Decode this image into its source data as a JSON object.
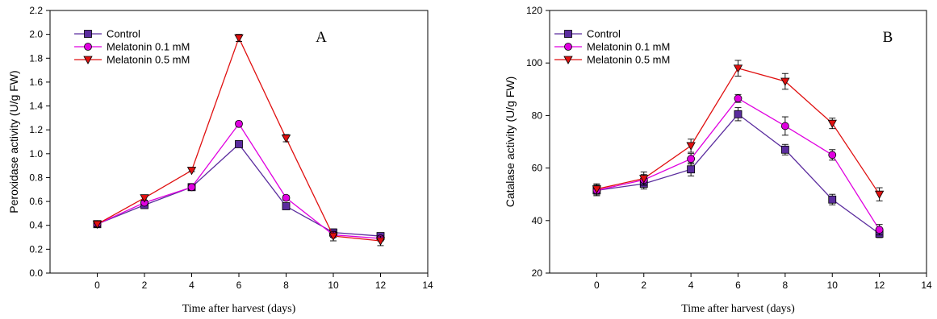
{
  "chart_data": [
    {
      "type": "line",
      "panel_label": "A",
      "xlabel": "Time after harvest (days)",
      "ylabel": "Peroxidase activity (U/g FW)",
      "xlim": [
        -2,
        14
      ],
      "ylim": [
        0,
        2.2
      ],
      "xticks": [
        "0",
        "2",
        "4",
        "6",
        "8",
        "10",
        "12",
        "14"
      ],
      "yticks": [
        "0.0",
        "0.2",
        "0.4",
        "0.6",
        "0.8",
        "1.0",
        "1.2",
        "1.4",
        "1.6",
        "1.8",
        "2.0",
        "2.2"
      ],
      "legend_position": "top-left",
      "x": [
        0,
        2,
        4,
        6,
        8,
        10,
        12
      ],
      "series": [
        {
          "name": "Control",
          "color": "#5b2c9e",
          "marker": "square",
          "values": [
            0.41,
            0.57,
            0.72,
            1.08,
            0.56,
            0.34,
            0.31
          ],
          "errors": [
            0.02,
            0.02,
            0.02,
            0.02,
            0.02,
            0.03,
            0.02
          ]
        },
        {
          "name": "Melatonin 0.1 mM",
          "color": "#e000e0",
          "marker": "circle",
          "values": [
            0.41,
            0.59,
            0.72,
            1.25,
            0.63,
            0.32,
            0.29
          ],
          "errors": [
            0.02,
            0.02,
            0.02,
            0.02,
            0.02,
            0.02,
            0.02
          ]
        },
        {
          "name": "Melatonin 0.5 mM",
          "color": "#e01010",
          "marker": "triangle-down",
          "values": [
            0.41,
            0.63,
            0.86,
            1.97,
            1.13,
            0.31,
            0.27
          ],
          "errors": [
            0.02,
            0.02,
            0.01,
            0.03,
            0.03,
            0.04,
            0.04
          ]
        }
      ]
    },
    {
      "type": "line",
      "panel_label": "B",
      "xlabel": "Time after harvest (days)",
      "ylabel": "Catalase activity (U/g FW)",
      "xlim": [
        -2,
        14
      ],
      "ylim": [
        20,
        120
      ],
      "xticks": [
        "0",
        "2",
        "4",
        "6",
        "8",
        "10",
        "12",
        "14"
      ],
      "yticks": [
        "20",
        "40",
        "60",
        "80",
        "100",
        "120"
      ],
      "legend_position": "top-left",
      "x": [
        0,
        2,
        4,
        6,
        8,
        10,
        12
      ],
      "series": [
        {
          "name": "Control",
          "color": "#5b2c9e",
          "marker": "square",
          "values": [
            51.5,
            54,
            59.5,
            80.5,
            67,
            48,
            35
          ],
          "errors": [
            2,
            2,
            2.5,
            2.5,
            2,
            2,
            1.5
          ]
        },
        {
          "name": "Melatonin 0.1 mM",
          "color": "#e000e0",
          "marker": "circle",
          "values": [
            51.5,
            55.5,
            63.5,
            86.5,
            76,
            65,
            36.5
          ],
          "errors": [
            2,
            2,
            2,
            1.5,
            3.5,
            2,
            2
          ]
        },
        {
          "name": "Melatonin 0.5 mM",
          "color": "#e01010",
          "marker": "triangle-down",
          "values": [
            52,
            56,
            68.5,
            98,
            93,
            77,
            50
          ],
          "errors": [
            2,
            2.5,
            2.5,
            3,
            3,
            2,
            2.5
          ]
        }
      ]
    }
  ]
}
